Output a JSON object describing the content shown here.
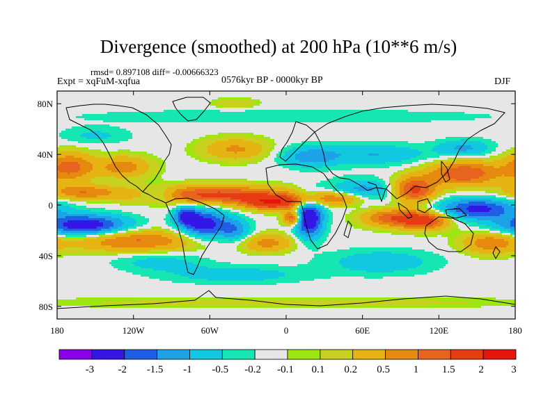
{
  "chart_data": {
    "type": "heatmap",
    "title": "Divergence (smoothed) at 200 hPa (10**6 m/s)",
    "stats": "rmsd= 0.897108 diff= -0.00666323",
    "subtitle": "0576kyr BP - 0000kyr BP",
    "experiment": "Expt = xqFuM-xqfua",
    "season": "DJF",
    "x_range": [
      -180,
      180
    ],
    "y_range": [
      -90,
      90
    ],
    "x_ticks": [
      {
        "value": -180,
        "label": "180"
      },
      {
        "value": -120,
        "label": "120W"
      },
      {
        "value": -60,
        "label": "60W"
      },
      {
        "value": 0,
        "label": "0"
      },
      {
        "value": 60,
        "label": "60E"
      },
      {
        "value": 120,
        "label": "120E"
      },
      {
        "value": 180,
        "label": "180"
      }
    ],
    "y_ticks": [
      {
        "value": 80,
        "label": "80N"
      },
      {
        "value": 40,
        "label": "40N"
      },
      {
        "value": 0,
        "label": "0"
      },
      {
        "value": -40,
        "label": "40S"
      },
      {
        "value": -80,
        "label": "80S"
      }
    ],
    "colorbar": {
      "colors": [
        "#8a00e8",
        "#3416e6",
        "#1f5fe6",
        "#1da2e8",
        "#10c8e0",
        "#15e6b2",
        "#e6e6e6",
        "#9ee612",
        "#c8d21e",
        "#e6b412",
        "#e68a0f",
        "#e6641e",
        "#e63c12",
        "#e6140f"
      ],
      "labels": [
        "-3",
        "-2",
        "-1.5",
        "-1",
        "-0.5",
        "-0.2",
        "-0.1",
        "0.1",
        "0.2",
        "0.5",
        "1",
        "1.5",
        "2",
        "3"
      ]
    },
    "features": [
      {
        "name": "SE Pacific convergence",
        "lon": -158,
        "lat": -16,
        "sx": 24,
        "sy": 6,
        "value": -2.6
      },
      {
        "name": "S America convergence",
        "lon": -65,
        "lat": -15,
        "sx": 13,
        "sy": 8,
        "value": -2.4
      },
      {
        "name": "Amazon west",
        "lon": -79,
        "lat": -8,
        "sx": 6,
        "sy": 5,
        "value": -1.8
      },
      {
        "name": "S Atlantic convergence",
        "lon": -40,
        "lat": -20,
        "sx": 9,
        "sy": 7,
        "value": -1.3
      },
      {
        "name": "Africa-Atlantic convergence",
        "lon": 18,
        "lat": -10,
        "sx": 8,
        "sy": 11,
        "value": -2.8
      },
      {
        "name": "Equatorial Atlantic divergence",
        "lon": -10,
        "lat": 2,
        "sx": 16,
        "sy": 4,
        "value": 2.6
      },
      {
        "name": "Gulf of Guinea max",
        "lon": 5,
        "lat": -10,
        "sx": 5,
        "sy": 4,
        "value": 2.2
      },
      {
        "name": "Tropical Pacific-Atlantic divergence",
        "lon": -55,
        "lat": 8,
        "sx": 40,
        "sy": 5,
        "value": 2.2
      },
      {
        "name": "Central Pacific divergence",
        "lon": -160,
        "lat": 10,
        "sx": 20,
        "sy": 4,
        "value": 1.4
      },
      {
        "name": "South Pacific divergence",
        "lon": -120,
        "lat": -28,
        "sx": 35,
        "sy": 6,
        "value": 1.6
      },
      {
        "name": "South Atlantic divergence",
        "lon": -15,
        "lat": -30,
        "sx": 15,
        "sy": 5,
        "value": 1.2
      },
      {
        "name": "N Pacific divergence",
        "lon": -170,
        "lat": 30,
        "sx": 13,
        "sy": 8,
        "value": 1.7
      },
      {
        "name": "N America divergence",
        "lon": -128,
        "lat": 30,
        "sx": 15,
        "sy": 6,
        "value": 1.3
      },
      {
        "name": "N Atlantic divergence",
        "lon": -40,
        "lat": 44,
        "sx": 18,
        "sy": 6,
        "value": 1.1
      },
      {
        "name": "Mediterranean convergence",
        "lon": 18,
        "lat": 38,
        "sx": 16,
        "sy": 6,
        "value": -1.2
      },
      {
        "name": "Central Asia convergence",
        "lon": 70,
        "lat": 40,
        "sx": 30,
        "sy": 6,
        "value": -1.0
      },
      {
        "name": "Arabian Sea convergence",
        "lon": 60,
        "lat": 10,
        "sx": 20,
        "sy": 7,
        "value": -1.4
      },
      {
        "name": "Equatorial Africa divergence",
        "lon": 40,
        "lat": 5,
        "sx": 20,
        "sy": 4,
        "value": 1.8
      },
      {
        "name": "East Asia divergence",
        "lon": 100,
        "lat": 12,
        "sx": 12,
        "sy": 7,
        "value": 2.3
      },
      {
        "name": "Maritime continent divergence",
        "lon": 108,
        "lat": -12,
        "sx": 14,
        "sy": 5,
        "value": 2.5
      },
      {
        "name": "Indian Ocean divergence",
        "lon": 80,
        "lat": -10,
        "sx": 15,
        "sy": 5,
        "value": 1.6
      },
      {
        "name": "W Pacific convergence",
        "lon": 150,
        "lat": -3,
        "sx": 22,
        "sy": 6,
        "value": -2.2
      },
      {
        "name": "N Pacific jet divergence",
        "lon": 140,
        "lat": 25,
        "sx": 20,
        "sy": 7,
        "value": 2.0
      },
      {
        "name": "NW Pacific convergence",
        "lon": 140,
        "lat": 45,
        "sx": 15,
        "sy": 5,
        "value": -1.1
      },
      {
        "name": "SW Pacific divergence",
        "lon": 160,
        "lat": -30,
        "sx": 15,
        "sy": 6,
        "value": 1.3
      },
      {
        "name": "Southern Ocean convergence",
        "lon": -40,
        "lat": -55,
        "sx": 40,
        "sy": 5,
        "value": -0.8
      },
      {
        "name": "Southern Indian convergence",
        "lon": 75,
        "lat": -45,
        "sx": 30,
        "sy": 7,
        "value": -0.9
      },
      {
        "name": "Southern Pacific convergence",
        "lon": -100,
        "lat": -45,
        "sx": 25,
        "sy": 5,
        "value": -0.7
      },
      {
        "name": "Tropical E Pacific convergence",
        "lon": -100,
        "lat": 8,
        "sx": 10,
        "sy": 4,
        "value": -0.9
      },
      {
        "name": "N Pacific north convergence",
        "lon": -150,
        "lat": 55,
        "sx": 20,
        "sy": 5,
        "value": -0.6
      },
      {
        "name": "Arctic ring",
        "lon": 0,
        "lat": 70,
        "sx": 120,
        "sy": 4,
        "value": -0.5
      },
      {
        "name": "Greenland patch",
        "lon": -40,
        "lat": 80,
        "sx": 12,
        "sy": 3,
        "value": 0.5
      },
      {
        "name": "Antarctic band",
        "lon": 0,
        "lat": -77,
        "sx": 160,
        "sy": 3,
        "value": 0.3
      }
    ],
    "map_outline_note": "continental coastlines drawn as black lines"
  }
}
